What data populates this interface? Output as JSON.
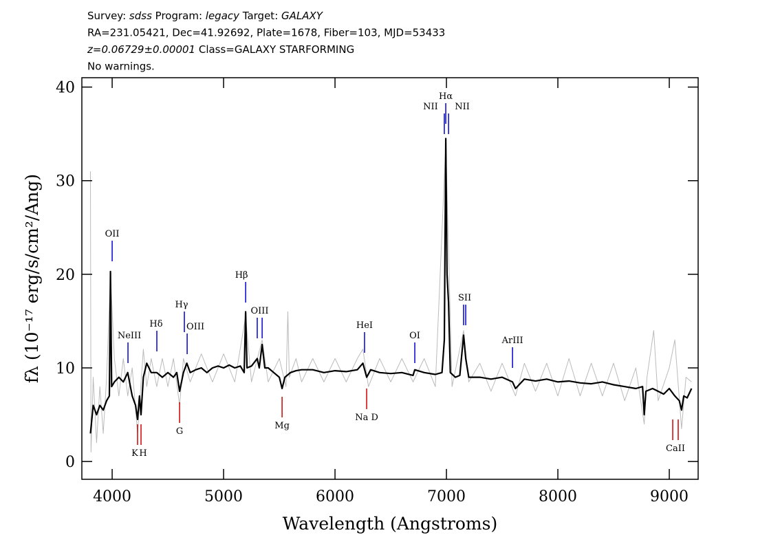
{
  "chart_data": {
    "type": "line",
    "header": [
      [
        {
          "text": "Survey: "
        },
        {
          "text": "sdss",
          "italic": true
        },
        {
          "text": " Program: "
        },
        {
          "text": "legacy",
          "italic": true
        },
        {
          "text": " Target: "
        },
        {
          "text": "GALAXY",
          "italic": true
        }
      ],
      [
        {
          "text": "RA=231.05421, Dec=41.92692, Plate=1678, Fiber=103, MJD=53433"
        }
      ],
      [
        {
          "text": "z=0.06729±0.00001",
          "italic": true
        },
        {
          "text": " Class=GALAXY STARFORMING"
        }
      ],
      [
        {
          "text": "No warnings."
        }
      ]
    ],
    "xlabel": "Wavelength (Angstroms)",
    "ylabel": "fλ (10⁻¹⁷ erg/s/cm²/Ang)",
    "xlim": [
      3728,
      9259
    ],
    "ylim": [
      -1.9,
      41
    ],
    "xticks": [
      4000,
      5000,
      6000,
      7000,
      8000,
      9000
    ],
    "yticks": [
      0,
      10,
      20,
      30,
      40
    ],
    "series": [
      {
        "color": "#bbbbbb",
        "x": [
          3805,
          3810,
          3830,
          3860,
          3890,
          3920,
          3950,
          3985,
          4020,
          4060,
          4100,
          4140,
          4180,
          4228,
          4280,
          4310,
          4350,
          4400,
          4450,
          4500,
          4550,
          4605,
          4640,
          4700,
          4800,
          4900,
          5000,
          5100,
          5198,
          5250,
          5346,
          5400,
          5500,
          5560,
          5577,
          5590,
          5650,
          5700,
          5800,
          5900,
          6000,
          6100,
          6200,
          6250,
          6300,
          6400,
          6500,
          6600,
          6700,
          6800,
          6900,
          6994,
          7050,
          7154,
          7200,
          7300,
          7400,
          7500,
          7620,
          7700,
          7800,
          7900,
          8000,
          8100,
          8200,
          8300,
          8400,
          8500,
          8600,
          8700,
          8775,
          8800,
          8860,
          8900,
          9000,
          9050,
          9110,
          9150,
          9200
        ],
        "values": [
          31,
          1,
          9,
          2,
          8,
          3,
          9,
          20,
          11,
          7,
          11,
          7,
          10,
          3,
          12,
          8,
          11,
          8,
          11,
          8,
          11,
          6,
          11,
          8.5,
          11.5,
          8.5,
          11.5,
          8.5,
          15.5,
          8.5,
          13,
          8.5,
          11,
          8,
          16,
          9,
          11,
          8.5,
          11,
          8.5,
          11,
          8.5,
          11,
          12,
          8,
          11,
          8.5,
          11,
          8.5,
          11,
          8,
          34,
          8,
          14,
          8.5,
          10.5,
          7.5,
          10.5,
          7,
          10.5,
          7.5,
          10.5,
          7,
          11,
          7,
          10.5,
          7,
          10.5,
          6.5,
          10,
          4,
          9,
          14,
          6.5,
          10,
          13,
          3.5,
          9,
          8.5
        ]
      },
      {
        "color": "#000000",
        "x": [
          3805,
          3830,
          3860,
          3890,
          3920,
          3950,
          3975,
          3985,
          3995,
          4020,
          4060,
          4100,
          4140,
          4180,
          4210,
          4228,
          4245,
          4259,
          4280,
          4310,
          4350,
          4400,
          4450,
          4500,
          4550,
          4580,
          4605,
          4640,
          4670,
          4700,
          4750,
          4800,
          4850,
          4900,
          4950,
          5000,
          5050,
          5100,
          5150,
          5185,
          5198,
          5210,
          5250,
          5302,
          5320,
          5346,
          5370,
          5400,
          5450,
          5500,
          5525,
          5550,
          5600,
          5650,
          5700,
          5800,
          5900,
          6000,
          6100,
          6200,
          6250,
          6284,
          6320,
          6400,
          6500,
          6600,
          6700,
          6716,
          6800,
          6900,
          6960,
          6981,
          6994,
          7005,
          7019,
          7035,
          7080,
          7120,
          7154,
          7173,
          7200,
          7300,
          7400,
          7500,
          7593,
          7620,
          7700,
          7800,
          7900,
          8000,
          8100,
          8200,
          8300,
          8400,
          8500,
          8600,
          8700,
          8760,
          8775,
          8790,
          8850,
          8900,
          8950,
          9000,
          9050,
          9090,
          9110,
          9130,
          9160,
          9200
        ],
        "values": [
          3,
          6,
          5,
          6,
          5.5,
          6.5,
          7,
          20.3,
          8,
          8.5,
          9,
          8.5,
          9.5,
          7,
          6,
          4.5,
          7,
          5,
          9,
          10.5,
          9.5,
          9.5,
          9,
          9.5,
          9,
          9.5,
          7.5,
          9.5,
          10.5,
          9.5,
          9.8,
          10,
          9.5,
          10,
          10.2,
          10,
          10.3,
          10,
          10.2,
          9.5,
          16,
          10,
          10.2,
          11,
          10,
          12.5,
          10,
          10,
          9.5,
          9,
          7.8,
          9,
          9.5,
          9.7,
          9.8,
          9.8,
          9.5,
          9.7,
          9.6,
          9.8,
          10.5,
          9,
          9.8,
          9.5,
          9.4,
          9.5,
          9.2,
          9.8,
          9.5,
          9.3,
          9.5,
          13,
          34.5,
          20,
          17,
          9.5,
          9,
          9.2,
          13.5,
          11,
          9,
          9,
          8.8,
          9,
          8.5,
          7.8,
          8.8,
          8.6,
          8.8,
          8.5,
          8.6,
          8.4,
          8.3,
          8.5,
          8.2,
          8,
          7.8,
          8,
          5,
          7.5,
          7.8,
          7.5,
          7.2,
          7.8,
          7,
          6.5,
          5.5,
          7,
          6.8,
          7.8
        ]
      }
    ],
    "annotations": [
      {
        "label": "OII",
        "wavelengths": [
          4000
        ],
        "color": "#0000cc"
      },
      {
        "label": "NeIII",
        "wavelengths": [
          4142
        ],
        "color": "#0000cc"
      },
      {
        "label": "Hδ",
        "wavelengths": [
          4401
        ],
        "color": "#0000cc"
      },
      {
        "label": "Hγ",
        "wavelengths": [
          4648
        ],
        "color": "#0000cc"
      },
      {
        "label": "OIII",
        "wavelengths": [
          4673
        ],
        "color": "#0000cc"
      },
      {
        "label": "Hβ",
        "wavelengths": [
          5198
        ],
        "color": "#0000cc"
      },
      {
        "label": "OIII",
        "wavelengths": [
          5302,
          5346
        ],
        "color": "#0000cc"
      },
      {
        "label": "HeI",
        "wavelengths": [
          6265
        ],
        "color": "#0000cc"
      },
      {
        "label": "OI",
        "wavelengths": [
          6716
        ],
        "color": "#0000cc"
      },
      {
        "label": "NII",
        "wavelengths": [
          6981
        ],
        "color": "#0000cc"
      },
      {
        "label": "Hα",
        "wavelengths": [
          6994
        ],
        "color": "#0000cc"
      },
      {
        "label": "NII",
        "wavelengths": [
          7019
        ],
        "color": "#0000cc"
      },
      {
        "label": "SII",
        "wavelengths": [
          7154,
          7173
        ],
        "color": "#0000cc"
      },
      {
        "label": "ArIII",
        "wavelengths": [
          7593
        ],
        "color": "#0000cc"
      },
      {
        "label": "K",
        "wavelengths": [
          4228
        ],
        "color": "#cc0000"
      },
      {
        "label": "H",
        "wavelengths": [
          4259
        ],
        "color": "#cc0000"
      },
      {
        "label": "G",
        "wavelengths": [
          4605
        ],
        "color": "#cc0000"
      },
      {
        "label": "Mg",
        "wavelengths": [
          5525
        ],
        "color": "#cc0000"
      },
      {
        "label": "Na D",
        "wavelengths": [
          6284
        ],
        "color": "#cc0000"
      },
      {
        "label": "CaII",
        "wavelengths": [
          9031,
          9080
        ],
        "color": "#cc0000"
      }
    ]
  }
}
